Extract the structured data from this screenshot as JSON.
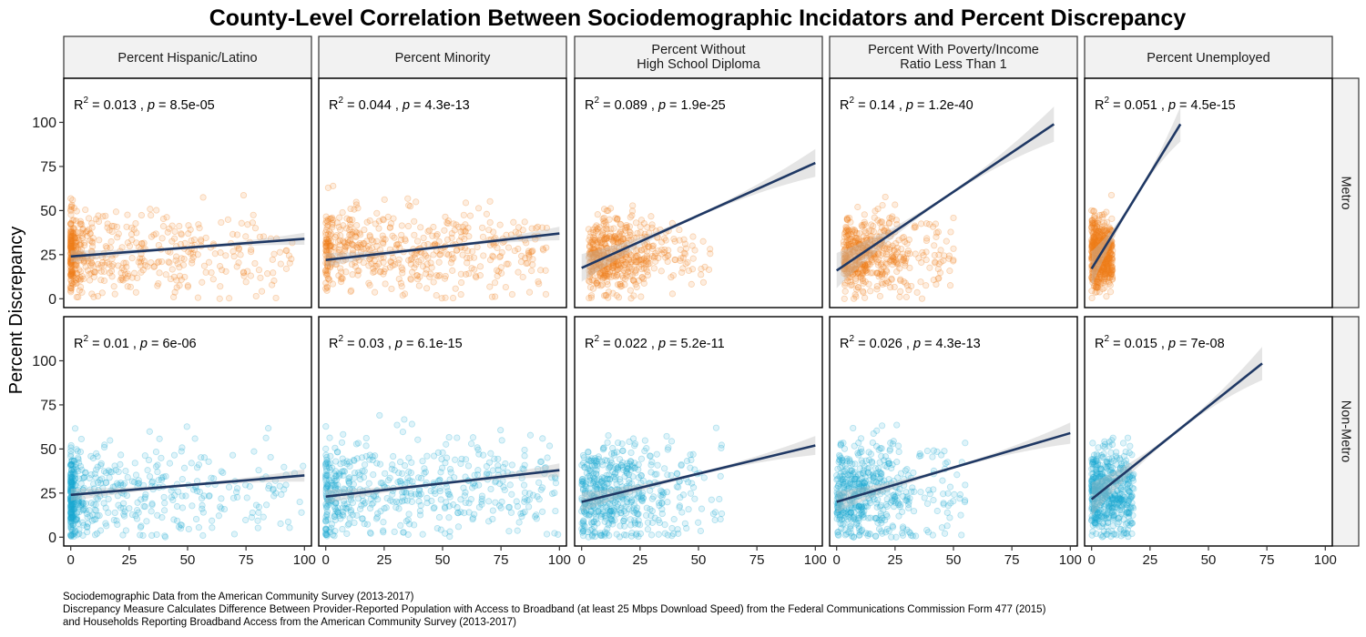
{
  "chart_data": {
    "type": "scatter",
    "title": "County-Level Correlation Between Sociodemographic Incidators and Percent Discrepancy",
    "ylabel": "Percent Discrepancy",
    "xlabel": "",
    "xlim": [
      -3,
      103
    ],
    "ylim": [
      -5,
      125
    ],
    "x_ticks": [
      0,
      25,
      50,
      75,
      100
    ],
    "y_ticks": [
      0,
      25,
      50,
      75,
      100
    ],
    "grid": false,
    "facet_columns": [
      {
        "lines": [
          "Percent Hispanic/Latino"
        ]
      },
      {
        "lines": [
          "Percent Minority"
        ]
      },
      {
        "lines": [
          "Percent Without",
          "High School Diploma"
        ]
      },
      {
        "lines": [
          "Percent With Poverty/Income",
          "Ratio Less Than 1"
        ]
      },
      {
        "lines": [
          "Percent Unemployed"
        ]
      }
    ],
    "facet_rows": [
      {
        "label": "Metro",
        "color": "#f07d1a"
      },
      {
        "label": "Non-Metro",
        "color": "#1aaad2"
      }
    ],
    "line_color": "#1f3864",
    "band_color": "#bebebe",
    "panels": [
      {
        "row": 0,
        "col": 0,
        "r2": "0.013",
        "p": "8.5e-05",
        "line": [
          [
            0,
            24
          ],
          [
            100,
            34
          ]
        ],
        "x_range": [
          0,
          95
        ],
        "y_center": 25,
        "y_spread": 13
      },
      {
        "row": 0,
        "col": 1,
        "r2": "0.044",
        "p": "4.3e-13",
        "line": [
          [
            0,
            22
          ],
          [
            100,
            37
          ]
        ],
        "x_range": [
          0,
          95
        ],
        "y_center": 27,
        "y_spread": 13
      },
      {
        "row": 0,
        "col": 2,
        "r2": "0.089",
        "p": "1.9e-25",
        "line": [
          [
            0,
            17.5
          ],
          [
            100,
            77
          ]
        ],
        "x_range": [
          3,
          55
        ],
        "y_center": 24,
        "y_spread": 11
      },
      {
        "row": 0,
        "col": 3,
        "r2": "0.14",
        "p": "1.2e-40",
        "line": [
          [
            0,
            16
          ],
          [
            93,
            99
          ]
        ],
        "x_range": [
          3,
          50
        ],
        "y_center": 25,
        "y_spread": 11
      },
      {
        "row": 0,
        "col": 4,
        "r2": "0.051",
        "p": "4.5e-15",
        "line": [
          [
            0,
            17
          ],
          [
            38,
            99
          ]
        ],
        "x_range": [
          0,
          9
        ],
        "y_center": 26,
        "y_spread": 11
      },
      {
        "row": 1,
        "col": 0,
        "r2": "0.01",
        "p": "6e-06",
        "line": [
          [
            0,
            24
          ],
          [
            100,
            35
          ]
        ],
        "x_range": [
          0,
          100
        ],
        "y_center": 25,
        "y_spread": 15
      },
      {
        "row": 1,
        "col": 1,
        "r2": "0.03",
        "p": "6.1e-15",
        "line": [
          [
            0,
            23
          ],
          [
            100,
            38
          ]
        ],
        "x_range": [
          0,
          100
        ],
        "y_center": 26,
        "y_spread": 15
      },
      {
        "row": 1,
        "col": 2,
        "r2": "0.022",
        "p": "5.2e-11",
        "line": [
          [
            0,
            20
          ],
          [
            100,
            52
          ]
        ],
        "x_range": [
          0,
          60
        ],
        "y_center": 25,
        "y_spread": 15
      },
      {
        "row": 1,
        "col": 3,
        "r2": "0.026",
        "p": "4.3e-13",
        "line": [
          [
            0,
            20
          ],
          [
            100,
            59
          ]
        ],
        "x_range": [
          0,
          55
        ],
        "y_center": 25,
        "y_spread": 15
      },
      {
        "row": 1,
        "col": 4,
        "r2": "0.015",
        "p": "7e-08",
        "line": [
          [
            0,
            21.5
          ],
          [
            73,
            98.5
          ]
        ],
        "x_range": [
          0,
          18
        ],
        "y_center": 25,
        "y_spread": 14
      }
    ]
  },
  "caption": {
    "lines": [
      "Sociodemographic Data from the American Community Survey (2013-2017)",
      "Discrepancy Measure Calculates Difference Between Provider-Reported Population with Access to Broadband (at least 25 Mbps Download Speed) from the Federal Communications Commission Form 477 (2015)",
      "and Households Reporting Broadband Access from the American Community Survey (2013-2017)"
    ]
  }
}
